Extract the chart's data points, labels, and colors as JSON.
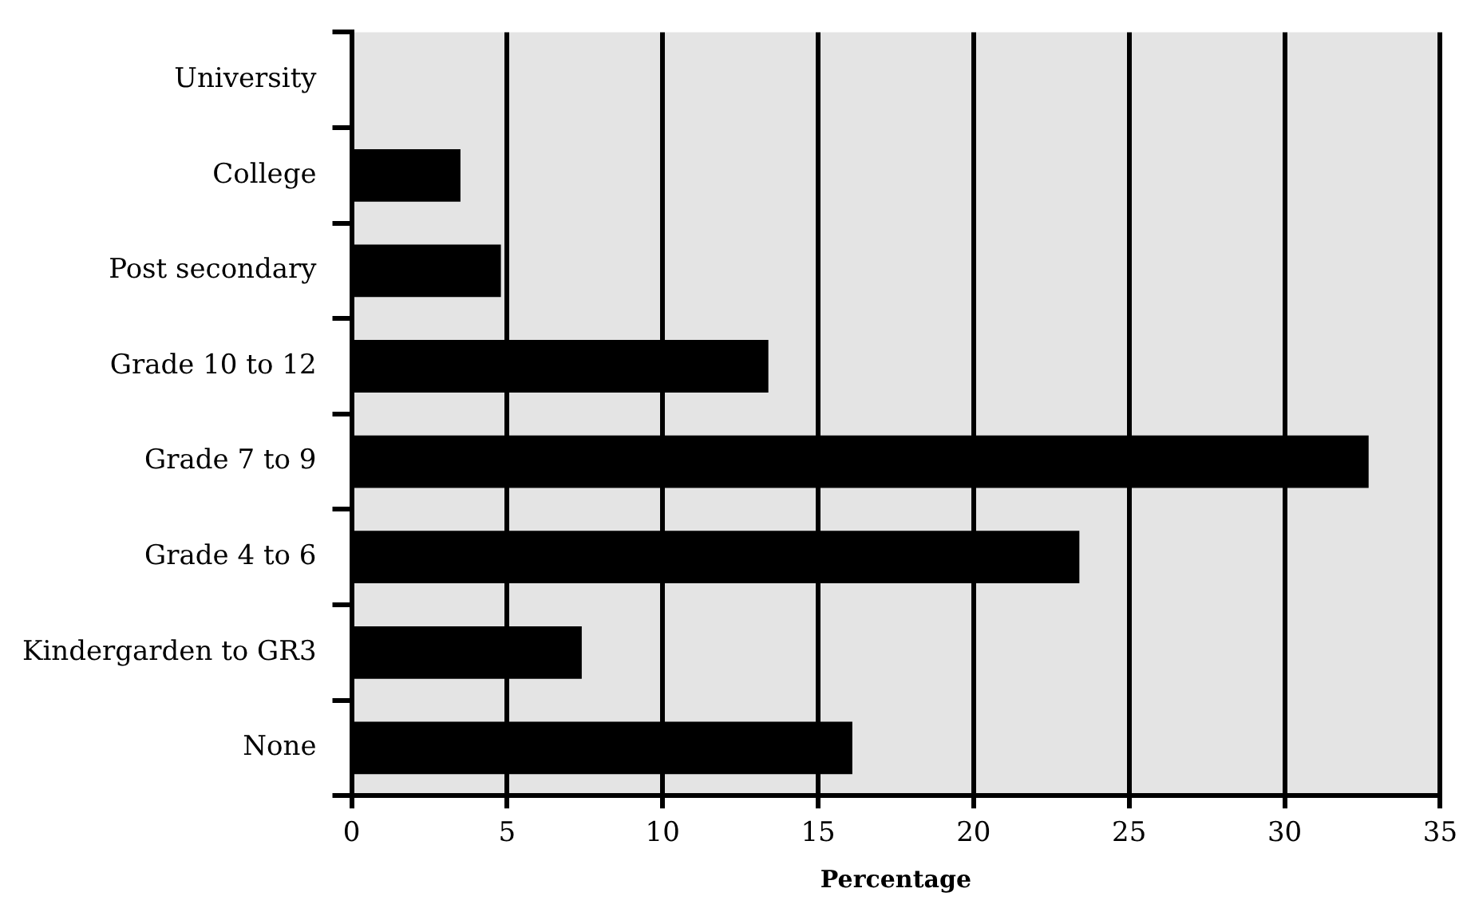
{
  "chart_data": {
    "type": "bar",
    "orientation": "horizontal",
    "xlabel": "Percentage",
    "categories": [
      "University",
      "College",
      "Post secondary",
      "Grade 10 to 12",
      "Grade 7 to 9",
      "Grade 4 to 6",
      "Kindergarden to GR3",
      "None"
    ],
    "values": [
      0,
      3.5,
      4.8,
      13.4,
      32.7,
      23.4,
      7.4,
      16.1
    ],
    "color": "#000000",
    "xlim": [
      0,
      35
    ],
    "xticks": [
      0,
      5,
      10,
      15,
      20,
      25,
      30,
      35
    ],
    "grid": "x"
  }
}
